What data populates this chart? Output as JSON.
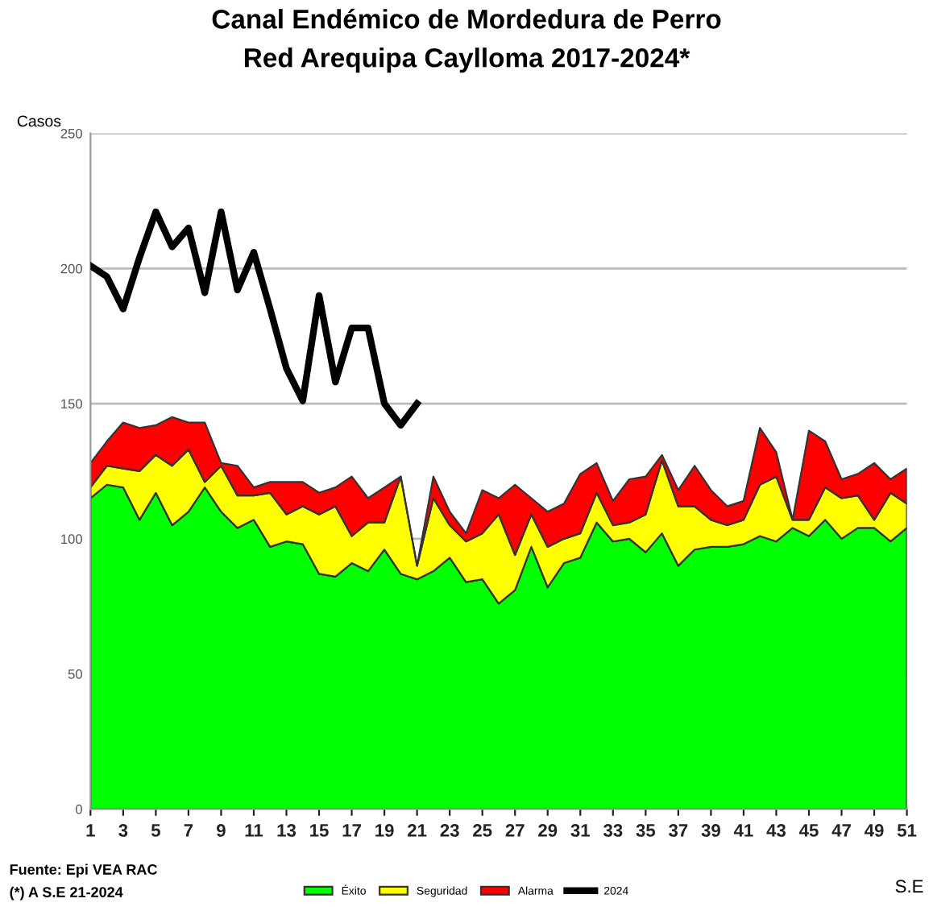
{
  "chart_data": {
    "type": "area",
    "stacked": true,
    "title": "Canal Endémico de Mordedura de Perro\nRed Arequipa Caylloma 2017-2024*",
    "ylabel": "Casos",
    "xlabel": "S.E",
    "x": [
      1,
      2,
      3,
      4,
      5,
      6,
      7,
      8,
      9,
      10,
      11,
      12,
      13,
      14,
      15,
      16,
      17,
      18,
      19,
      20,
      21,
      22,
      23,
      24,
      25,
      26,
      27,
      28,
      29,
      30,
      31,
      32,
      33,
      34,
      35,
      36,
      37,
      38,
      39,
      40,
      41,
      42,
      43,
      44,
      45,
      46,
      47,
      48,
      49,
      50,
      51
    ],
    "series": [
      {
        "name": "Éxito",
        "color": "#00ff00",
        "values": [
          115,
          120,
          119,
          107,
          117,
          105,
          110,
          119,
          110,
          104,
          107,
          97,
          99,
          98,
          87,
          86,
          91,
          88,
          96,
          87,
          85,
          88,
          93,
          84,
          85,
          76,
          81,
          97,
          82,
          91,
          93,
          106,
          99,
          100,
          95,
          102,
          90,
          96,
          97,
          97,
          98,
          101,
          99,
          104,
          101,
          107,
          100,
          104,
          104,
          99,
          104
        ]
      },
      {
        "name": "Seguridad",
        "color": "#ffff00",
        "values": [
          4,
          7,
          7,
          18,
          14,
          22,
          23,
          2,
          17,
          12,
          9,
          20,
          10,
          14,
          22,
          26,
          10,
          18,
          10,
          36,
          5,
          27,
          12,
          15,
          17,
          33,
          13,
          12,
          15,
          9,
          9,
          11,
          6,
          6,
          14,
          27,
          22,
          16,
          10,
          8,
          9,
          19,
          24,
          3,
          6,
          12,
          15,
          12,
          3,
          18,
          9
        ]
      },
      {
        "name": "Alarma",
        "color": "#ff0000",
        "values": [
          9,
          9,
          17,
          16,
          11,
          18,
          10,
          22,
          1,
          11,
          3,
          4,
          12,
          9,
          8,
          7,
          22,
          9,
          13,
          0,
          0,
          8,
          5,
          3,
          16,
          6,
          26,
          6,
          13,
          13,
          22,
          11,
          9,
          16,
          14,
          2,
          6,
          15,
          11,
          7,
          7,
          21,
          9,
          0,
          33,
          17,
          7,
          8,
          21,
          5,
          13
        ]
      },
      {
        "name": "2024",
        "type": "line",
        "color": "#000000",
        "x": [
          1,
          2,
          3,
          4,
          5,
          6,
          7,
          8,
          9,
          10,
          11,
          12,
          13,
          14,
          15,
          16,
          17,
          18,
          19,
          20,
          21
        ],
        "values": [
          201,
          197,
          185,
          204,
          221,
          208,
          215,
          191,
          221,
          192,
          206,
          185,
          163,
          151,
          190,
          158,
          178,
          178,
          150,
          142,
          150
        ]
      }
    ],
    "xlim": [
      1,
      51
    ],
    "xticks": [
      1,
      3,
      5,
      7,
      9,
      11,
      13,
      15,
      17,
      19,
      21,
      23,
      25,
      27,
      29,
      31,
      33,
      35,
      37,
      39,
      41,
      43,
      45,
      47,
      49,
      51
    ],
    "ylim": [
      0,
      250
    ],
    "yticks": [
      0,
      50,
      100,
      150,
      200,
      250
    ],
    "grid": "y",
    "legend": "bottom",
    "marker": "none",
    "line_style": "solid",
    "annotations": [
      "Fuente: Epi VEA RAC",
      "(*) A S.E 21-2024"
    ]
  }
}
